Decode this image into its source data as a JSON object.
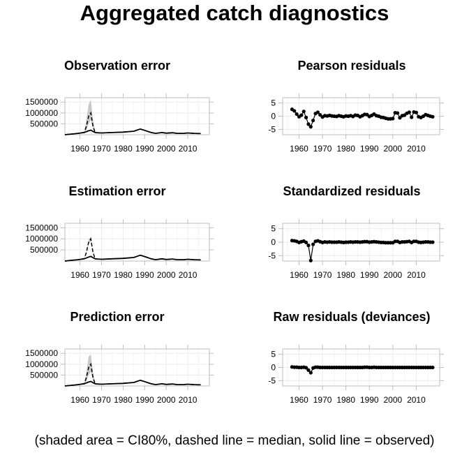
{
  "title": "Aggregated catch diagnostics",
  "caption": "(shaded area = CI80%, dashed line = median, solid line = observed)",
  "colors": {
    "observed": "#000000",
    "median": "#000000",
    "ci": "#bfbfbf",
    "grid": "#ececec",
    "frame": "#bdbdbd",
    "points": "#000000"
  },
  "chart_data": [
    {
      "type": "line",
      "title": "Observation error",
      "xlim": [
        1953,
        2020
      ],
      "ylim": [
        0,
        1700000
      ],
      "xticks": [
        "1960",
        "1970",
        "1980",
        "1990",
        "2000",
        "2010"
      ],
      "yticks": [
        "500000",
        "1000000",
        "1500000"
      ],
      "x": [
        1953,
        1956,
        1959,
        1962,
        1963,
        1964,
        1965,
        1966,
        1967,
        1968,
        1970,
        1975,
        1980,
        1985,
        1987,
        1988,
        1990,
        1993,
        1995,
        1998,
        2000,
        2003,
        2005,
        2008,
        2010,
        2013,
        2016
      ],
      "observed": [
        0,
        30000,
        60000,
        100000,
        140000,
        180000,
        210000,
        150000,
        100000,
        90000,
        80000,
        100000,
        120000,
        160000,
        230000,
        260000,
        200000,
        100000,
        60000,
        100000,
        70000,
        90000,
        60000,
        60000,
        80000,
        60000,
        50000
      ],
      "median": [
        0,
        30000,
        60000,
        110000,
        400000,
        850000,
        1000000,
        400000,
        100000,
        90000,
        80000,
        100000,
        120000,
        160000,
        230000,
        260000,
        200000,
        100000,
        60000,
        100000,
        70000,
        90000,
        60000,
        60000,
        80000,
        60000,
        50000
      ],
      "ci_lower": [
        0,
        25000,
        50000,
        90000,
        200000,
        500000,
        700000,
        250000,
        80000,
        80000,
        70000,
        90000,
        110000,
        150000,
        215000,
        245000,
        185000,
        90000,
        55000,
        90000,
        60000,
        80000,
        55000,
        55000,
        70000,
        55000,
        45000
      ],
      "ci_upper": [
        0,
        40000,
        75000,
        130000,
        700000,
        1400000,
        1600000,
        700000,
        130000,
        100000,
        90000,
        110000,
        135000,
        175000,
        245000,
        275000,
        215000,
        115000,
        70000,
        115000,
        85000,
        100000,
        70000,
        70000,
        90000,
        70000,
        60000
      ]
    },
    {
      "type": "scatter",
      "title": "Pearson residuals",
      "xlim": [
        1953,
        2020
      ],
      "ylim": [
        -7,
        7
      ],
      "xticks": [
        "1960",
        "1970",
        "1980",
        "1990",
        "2000",
        "2010"
      ],
      "yticks": [
        "5",
        "0",
        "-5"
      ],
      "x": [
        1957,
        1958,
        1959,
        1960,
        1961,
        1962,
        1963,
        1964,
        1965,
        1966,
        1967,
        1968,
        1969,
        1970,
        1971,
        1972,
        1973,
        1974,
        1975,
        1976,
        1977,
        1978,
        1979,
        1980,
        1981,
        1982,
        1983,
        1984,
        1985,
        1986,
        1987,
        1988,
        1989,
        1990,
        1991,
        1992,
        1993,
        1994,
        1995,
        1996,
        1997,
        1998,
        1999,
        2000,
        2001,
        2002,
        2003,
        2004,
        2005,
        2006,
        2007,
        2008,
        2009,
        2010,
        2011,
        2012,
        2013,
        2014,
        2015,
        2016,
        2017
      ],
      "y": [
        2.6,
        2.0,
        0.8,
        -0.2,
        0.4,
        1.8,
        -0.5,
        -3.0,
        -4.0,
        -1.6,
        1.0,
        1.5,
        0.5,
        -0.3,
        0.2,
        0.1,
        0.3,
        0.1,
        0.0,
        -0.1,
        0.2,
        0.0,
        -0.2,
        0.1,
        0.0,
        0.2,
        -0.1,
        0.4,
        0.3,
        -0.2,
        0.2,
        0.7,
        0.6,
        -0.1,
        0.3,
        0.8,
        0.2,
        0.0,
        -0.4,
        -0.5,
        -0.8,
        -1.0,
        -1.0,
        -0.9,
        1.3,
        1.2,
        -0.6,
        0.2,
        0.4,
        1.1,
        1.5,
        -0.4,
        1.6,
        1.4,
        -0.2,
        -0.5,
        0.0,
        0.6,
        0.3,
        0.0,
        -0.2
      ]
    },
    {
      "type": "line",
      "title": "Estimation error",
      "xlim": [
        1953,
        2020
      ],
      "ylim": [
        0,
        1700000
      ],
      "xticks": [
        "1960",
        "1970",
        "1980",
        "1990",
        "2000",
        "2010"
      ],
      "yticks": [
        "500000",
        "1000000",
        "1500000"
      ],
      "x": [
        1953,
        1956,
        1959,
        1962,
        1963,
        1964,
        1965,
        1966,
        1967,
        1968,
        1970,
        1975,
        1980,
        1985,
        1987,
        1988,
        1990,
        1993,
        1995,
        1998,
        2000,
        2003,
        2005,
        2008,
        2010,
        2013,
        2016
      ],
      "observed": [
        0,
        30000,
        60000,
        100000,
        140000,
        180000,
        210000,
        150000,
        100000,
        90000,
        80000,
        100000,
        120000,
        160000,
        230000,
        260000,
        200000,
        100000,
        60000,
        100000,
        70000,
        90000,
        60000,
        60000,
        80000,
        60000,
        50000
      ],
      "median": [
        0,
        30000,
        60000,
        110000,
        400000,
        850000,
        1000000,
        400000,
        100000,
        90000,
        80000,
        100000,
        120000,
        160000,
        230000,
        260000,
        200000,
        100000,
        60000,
        100000,
        70000,
        90000,
        60000,
        60000,
        80000,
        60000,
        50000
      ],
      "ci_lower": [
        0,
        29000,
        58000,
        105000,
        350000,
        750000,
        900000,
        350000,
        95000,
        88000,
        78000,
        98000,
        118000,
        158000,
        227000,
        257000,
        197000,
        98000,
        58000,
        98000,
        68000,
        88000,
        58000,
        58000,
        78000,
        58000,
        48000
      ],
      "ci_upper": [
        0,
        31000,
        62000,
        115000,
        450000,
        950000,
        1100000,
        450000,
        105000,
        92000,
        82000,
        102000,
        122000,
        162000,
        233000,
        263000,
        203000,
        102000,
        62000,
        102000,
        72000,
        92000,
        62000,
        62000,
        82000,
        62000,
        52000
      ]
    },
    {
      "type": "scatter",
      "title": "Standardized residuals",
      "xlim": [
        1953,
        2020
      ],
      "ylim": [
        -7,
        7
      ],
      "xticks": [
        "1960",
        "1970",
        "1980",
        "1990",
        "2000",
        "2010"
      ],
      "yticks": [
        "5",
        "0",
        "-5"
      ],
      "x": [
        1957,
        1958,
        1959,
        1960,
        1961,
        1962,
        1963,
        1964,
        1965,
        1966,
        1967,
        1968,
        1969,
        1970,
        1971,
        1972,
        1973,
        1974,
        1975,
        1976,
        1977,
        1978,
        1979,
        1980,
        1981,
        1982,
        1983,
        1984,
        1985,
        1986,
        1987,
        1988,
        1989,
        1990,
        1991,
        1992,
        1993,
        1994,
        1995,
        1996,
        1997,
        1998,
        1999,
        2000,
        2001,
        2002,
        2003,
        2004,
        2005,
        2006,
        2007,
        2008,
        2009,
        2010,
        2011,
        2012,
        2013,
        2014,
        2015,
        2016,
        2017
      ],
      "y": [
        0.6,
        0.5,
        0.3,
        -0.1,
        0.2,
        0.4,
        -0.1,
        -1.2,
        -6.8,
        -0.8,
        0.3,
        0.5,
        0.2,
        -0.1,
        0.1,
        0.0,
        0.1,
        0.0,
        0.0,
        0.0,
        0.1,
        0.0,
        -0.1,
        0.0,
        0.0,
        0.1,
        0.0,
        0.1,
        0.1,
        0.0,
        0.1,
        0.2,
        0.2,
        0.0,
        0.1,
        0.2,
        0.1,
        0.0,
        -0.1,
        -0.1,
        -0.2,
        -0.2,
        -0.2,
        -0.2,
        0.3,
        0.3,
        -0.1,
        0.1,
        0.1,
        0.2,
        0.3,
        -0.1,
        0.3,
        0.3,
        0.0,
        -0.1,
        0.0,
        0.1,
        0.1,
        0.0,
        0.0
      ]
    },
    {
      "type": "line",
      "title": "Prediction error",
      "xlim": [
        1953,
        2020
      ],
      "ylim": [
        0,
        1700000
      ],
      "xticks": [
        "1960",
        "1970",
        "1980",
        "1990",
        "2000",
        "2010"
      ],
      "yticks": [
        "500000",
        "1000000",
        "1500000"
      ],
      "x": [
        1953,
        1956,
        1959,
        1962,
        1963,
        1964,
        1965,
        1966,
        1967,
        1968,
        1970,
        1975,
        1980,
        1985,
        1987,
        1988,
        1990,
        1993,
        1995,
        1998,
        2000,
        2003,
        2005,
        2008,
        2010,
        2013,
        2016
      ],
      "observed": [
        0,
        30000,
        60000,
        100000,
        140000,
        180000,
        210000,
        150000,
        100000,
        90000,
        80000,
        100000,
        120000,
        160000,
        230000,
        260000,
        200000,
        100000,
        60000,
        100000,
        70000,
        90000,
        60000,
        60000,
        80000,
        60000,
        50000
      ],
      "median": [
        0,
        30000,
        60000,
        110000,
        400000,
        850000,
        1000000,
        400000,
        100000,
        90000,
        80000,
        100000,
        120000,
        160000,
        230000,
        260000,
        200000,
        100000,
        60000,
        100000,
        70000,
        90000,
        60000,
        60000,
        80000,
        60000,
        50000
      ],
      "ci_lower": [
        0,
        25000,
        50000,
        90000,
        200000,
        500000,
        650000,
        250000,
        80000,
        80000,
        70000,
        90000,
        110000,
        150000,
        215000,
        245000,
        185000,
        90000,
        55000,
        90000,
        60000,
        80000,
        55000,
        55000,
        70000,
        55000,
        45000
      ],
      "ci_upper": [
        0,
        40000,
        75000,
        130000,
        650000,
        1350000,
        1450000,
        650000,
        130000,
        100000,
        90000,
        110000,
        135000,
        175000,
        245000,
        275000,
        215000,
        115000,
        70000,
        115000,
        85000,
        100000,
        70000,
        70000,
        90000,
        70000,
        60000
      ]
    },
    {
      "type": "scatter",
      "title": "Raw residuals (deviances)",
      "xlim": [
        1953,
        2020
      ],
      "ylim": [
        -7,
        7
      ],
      "xticks": [
        "1960",
        "1970",
        "1980",
        "1990",
        "2000",
        "2010"
      ],
      "yticks": [
        "5",
        "0",
        "-5"
      ],
      "x": [
        1957,
        1958,
        1959,
        1960,
        1961,
        1962,
        1963,
        1964,
        1965,
        1966,
        1967,
        1968,
        1969,
        1970,
        1971,
        1972,
        1973,
        1974,
        1975,
        1976,
        1977,
        1978,
        1979,
        1980,
        1981,
        1982,
        1983,
        1984,
        1985,
        1986,
        1987,
        1988,
        1989,
        1990,
        1991,
        1992,
        1993,
        1994,
        1995,
        1996,
        1997,
        1998,
        1999,
        2000,
        2001,
        2002,
        2003,
        2004,
        2005,
        2006,
        2007,
        2008,
        2009,
        2010,
        2011,
        2012,
        2013,
        2014,
        2015,
        2016,
        2017
      ],
      "y": [
        0.2,
        0.1,
        0.1,
        0.0,
        0.0,
        0.1,
        -0.1,
        -1.0,
        -2.0,
        -0.2,
        0.1,
        0.1,
        0.0,
        0.0,
        0.0,
        0.0,
        0.0,
        0.0,
        0.0,
        0.0,
        0.0,
        0.0,
        0.0,
        0.0,
        0.0,
        0.0,
        0.0,
        0.0,
        0.0,
        0.0,
        0.0,
        0.1,
        0.1,
        0.0,
        0.0,
        0.1,
        0.0,
        0.0,
        0.0,
        0.0,
        0.0,
        0.0,
        0.0,
        0.0,
        0.0,
        0.0,
        0.0,
        0.0,
        0.0,
        0.0,
        0.0,
        0.0,
        0.0,
        0.0,
        0.0,
        0.0,
        0.0,
        0.0,
        0.0,
        0.0,
        0.0
      ]
    }
  ]
}
